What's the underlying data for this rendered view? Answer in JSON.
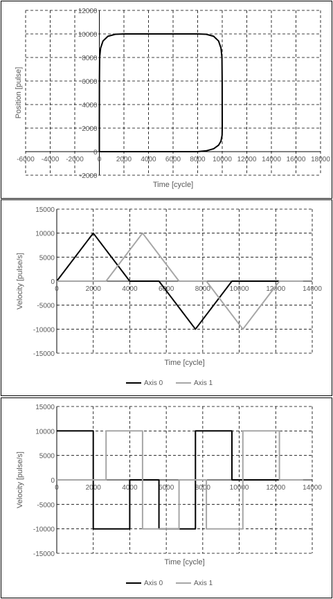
{
  "chart_data": [
    {
      "type": "line",
      "xlabel": "Time [cycle]",
      "ylabel": "Position [pulse]",
      "xlim": [
        -6000,
        18000
      ],
      "ylim": [
        -2000,
        12000
      ],
      "xticks": [
        -6000,
        -4000,
        -2000,
        0,
        2000,
        4000,
        6000,
        8000,
        10000,
        12000,
        14000,
        16000,
        18000
      ],
      "yticks": [
        -2000,
        0,
        2000,
        4000,
        6000,
        8000,
        10000,
        12000
      ],
      "grid": true,
      "legend": "none",
      "series": [
        {
          "color": "#000000",
          "points": [
            [
              0,
              0
            ],
            [
              0,
              2000
            ],
            [
              5,
              6000
            ],
            [
              20,
              8000
            ],
            [
              100,
              8800
            ],
            [
              300,
              9400
            ],
            [
              700,
              9800
            ],
            [
              1300,
              9970
            ],
            [
              2000,
              10000
            ],
            [
              8000,
              10000
            ],
            [
              8700,
              9970
            ],
            [
              9300,
              9800
            ],
            [
              9700,
              9400
            ],
            [
              9900,
              8800
            ],
            [
              9980,
              8000
            ],
            [
              9995,
              6000
            ],
            [
              10000,
              2000
            ],
            [
              9990,
              1400
            ],
            [
              9900,
              900
            ],
            [
              9700,
              550
            ],
            [
              9300,
              250
            ],
            [
              8700,
              70
            ],
            [
              8000,
              0
            ],
            [
              0,
              0
            ]
          ]
        }
      ]
    },
    {
      "type": "line",
      "xlabel": "Time [cycle]",
      "ylabel": "Velocity [pulse/s]",
      "xlim": [
        0,
        14000
      ],
      "ylim": [
        -15000,
        15000
      ],
      "xticks": [
        0,
        2000,
        4000,
        6000,
        8000,
        10000,
        12000,
        14000
      ],
      "yticks": [
        -15000,
        -10000,
        -5000,
        0,
        5000,
        10000,
        15000
      ],
      "grid": true,
      "legend": "bottom",
      "series": [
        {
          "name": "Axis 0",
          "color": "#000000",
          "points": [
            [
              0,
              0
            ],
            [
              2000,
              10000
            ],
            [
              4000,
              0
            ],
            [
              5600,
              0
            ],
            [
              7600,
              -10000
            ],
            [
              9600,
              0
            ],
            [
              12200,
              0
            ]
          ]
        },
        {
          "name": "Axis 1",
          "color": "#a6a6a6",
          "points": [
            [
              0,
              0
            ],
            [
              2700,
              0
            ],
            [
              4700,
              10000
            ],
            [
              6700,
              0
            ],
            [
              8200,
              0
            ],
            [
              10200,
              -10000
            ],
            [
              12200,
              0
            ],
            [
              13500,
              0
            ]
          ]
        }
      ]
    },
    {
      "type": "line",
      "xlabel": "Time [cycle]",
      "ylabel": "Velocity [pulse/s]",
      "xlim": [
        0,
        14000
      ],
      "ylim": [
        -15000,
        15000
      ],
      "xticks": [
        0,
        2000,
        4000,
        6000,
        8000,
        10000,
        12000,
        14000
      ],
      "yticks": [
        -15000,
        -10000,
        -5000,
        0,
        5000,
        10000,
        15000
      ],
      "grid": true,
      "legend": "bottom",
      "series": [
        {
          "name": "Axis 0",
          "color": "#000000",
          "points": [
            [
              0,
              10000
            ],
            [
              2000,
              10000
            ],
            [
              2000,
              -10000
            ],
            [
              4000,
              -10000
            ],
            [
              4000,
              0
            ],
            [
              5600,
              0
            ],
            [
              5600,
              -10000
            ],
            [
              7600,
              -10000
            ],
            [
              7600,
              10000
            ],
            [
              9600,
              10000
            ],
            [
              9600,
              0
            ],
            [
              12200,
              0
            ]
          ]
        },
        {
          "name": "Axis 1",
          "color": "#a6a6a6",
          "points": [
            [
              0,
              0
            ],
            [
              2700,
              0
            ],
            [
              2700,
              10000
            ],
            [
              4700,
              10000
            ],
            [
              4700,
              -10000
            ],
            [
              6700,
              -10000
            ],
            [
              6700,
              0
            ],
            [
              8200,
              0
            ],
            [
              8200,
              -10000
            ],
            [
              10200,
              -10000
            ],
            [
              10200,
              10000
            ],
            [
              12200,
              10000
            ],
            [
              12200,
              0
            ],
            [
              13500,
              0
            ]
          ]
        }
      ]
    }
  ]
}
